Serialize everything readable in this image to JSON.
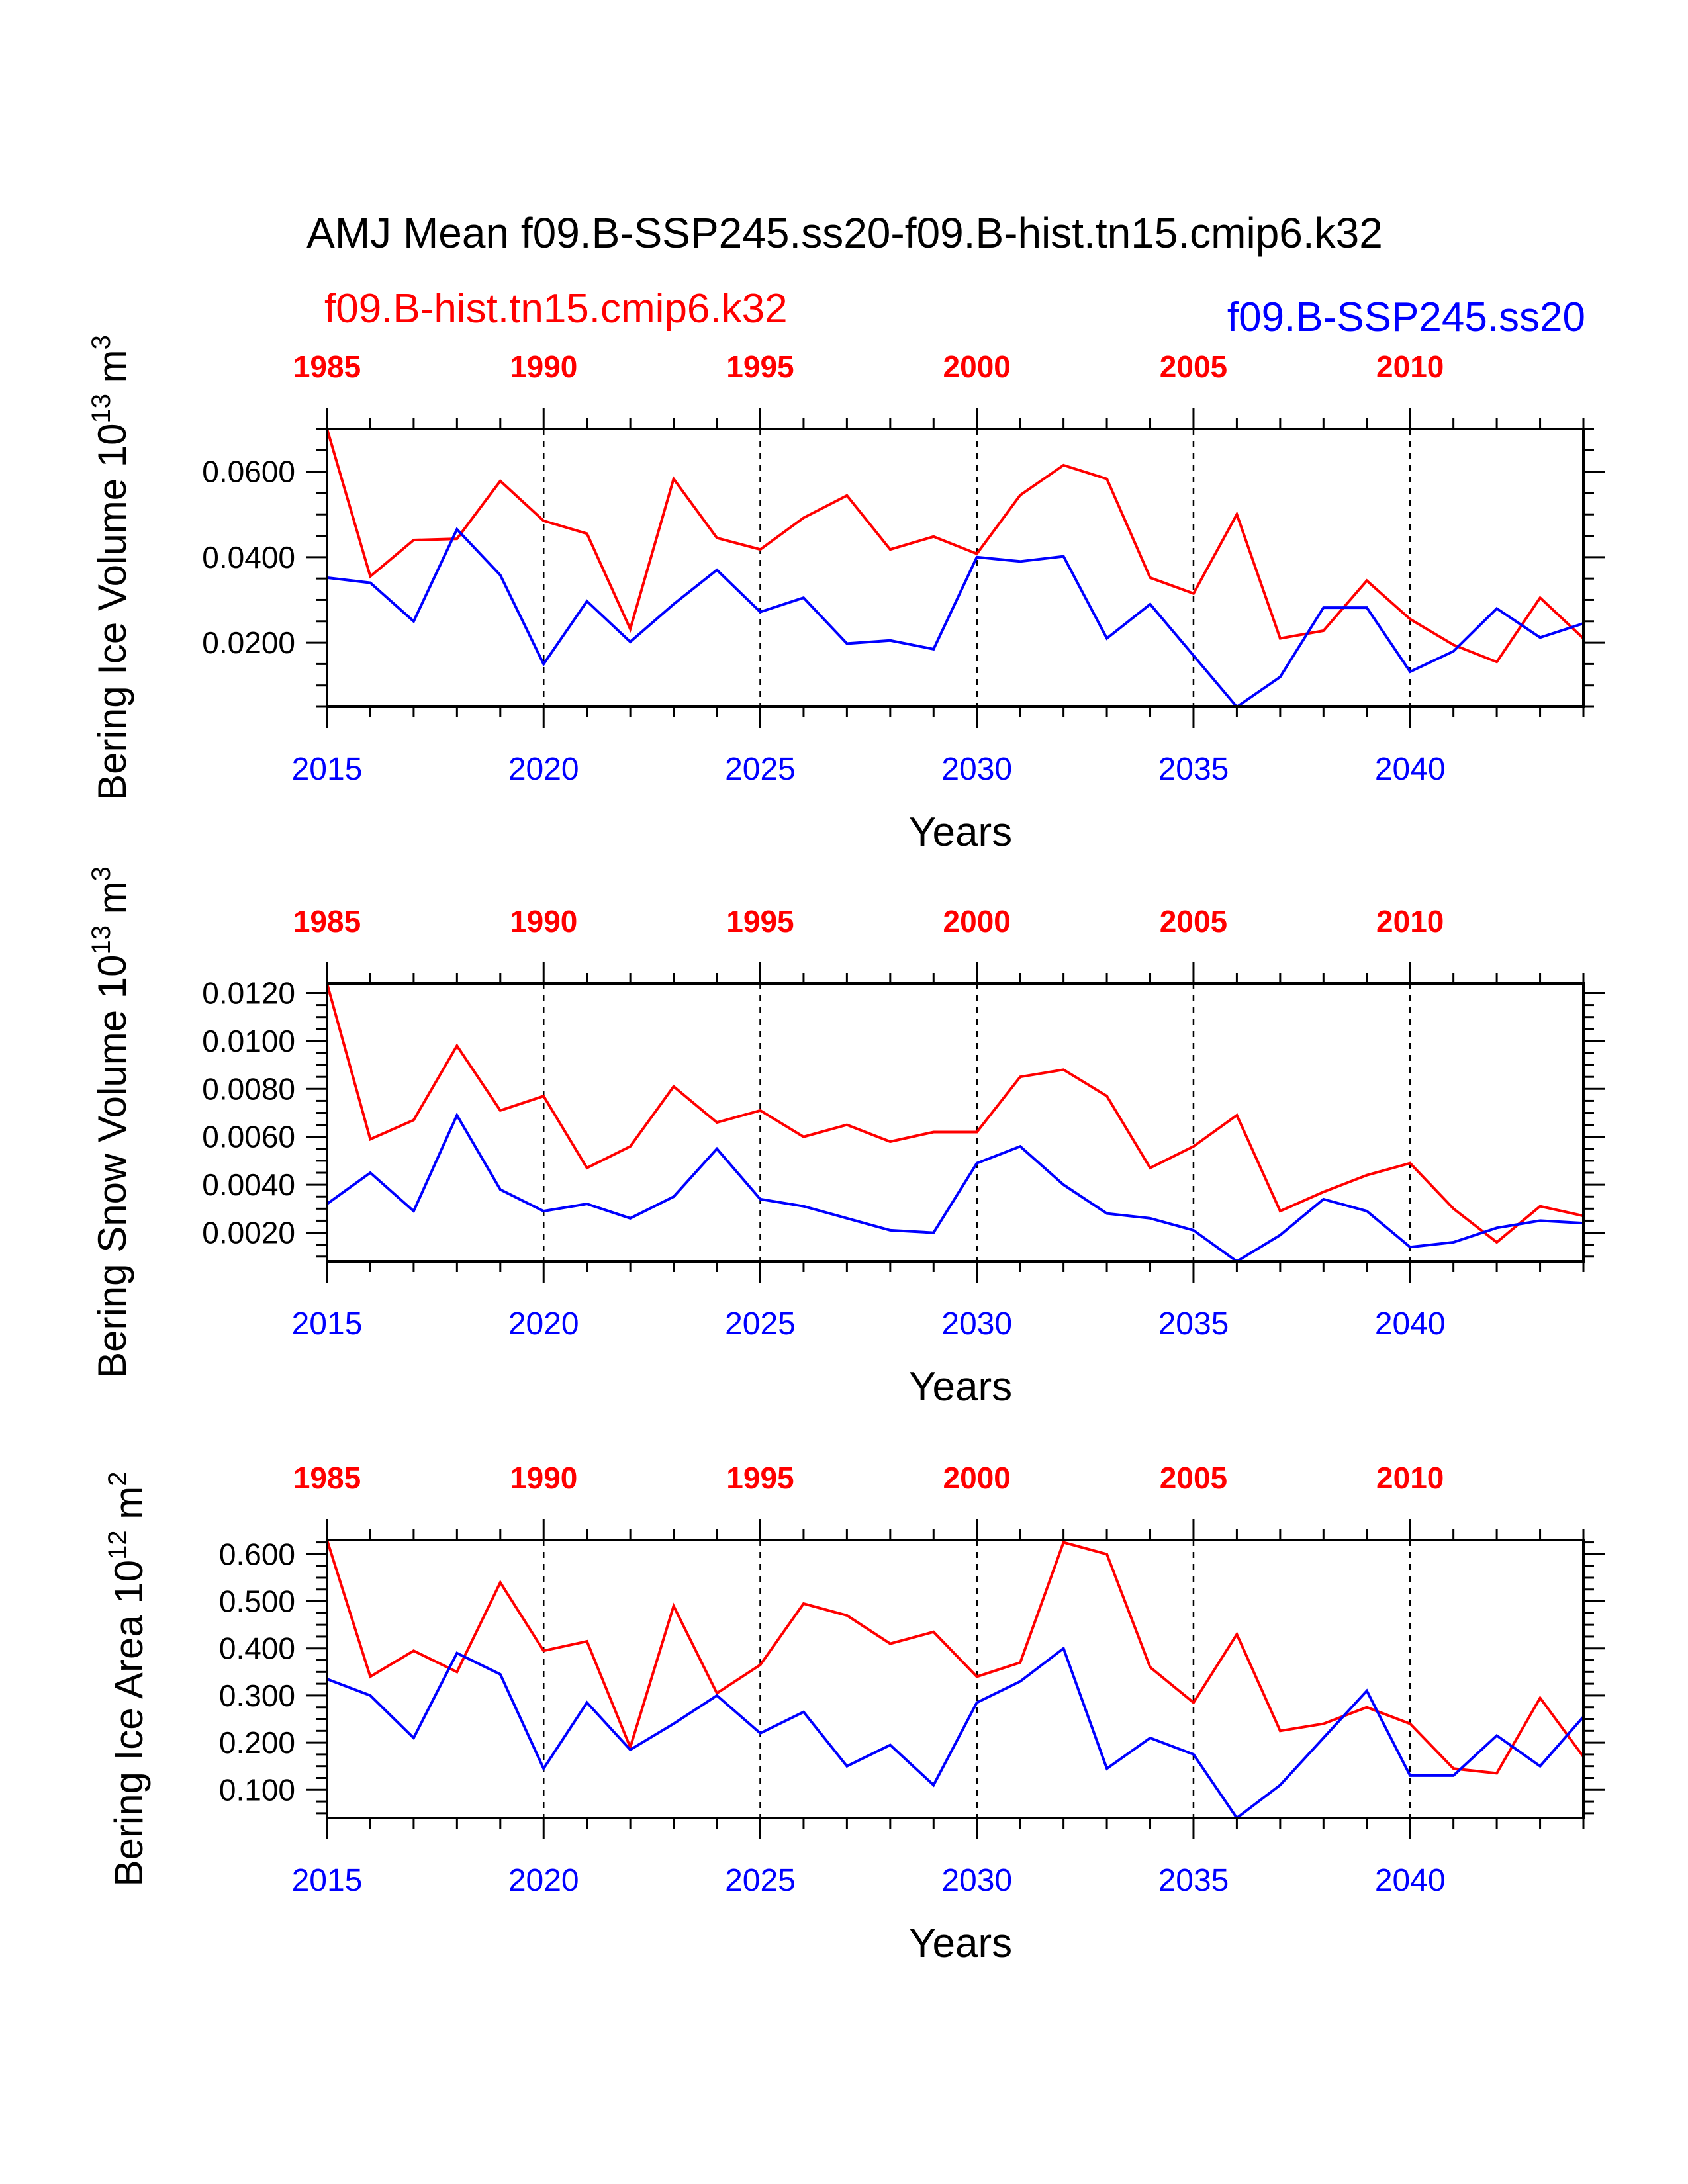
{
  "title": "AMJ Mean f09.B-SSP245.ss20-f09.B-hist.tn15.cmip6.k32",
  "legend": {
    "hist_label": "f09.B-hist.tn15.cmip6.k32",
    "ssp_label": "f09.B-SSP245.ss20"
  },
  "colors": {
    "hist": "#ff0000",
    "ssp": "#0000ff",
    "axis": "#000000",
    "grid": "#000000"
  },
  "chart_data": [
    {
      "type": "line",
      "ylabel_main": "Bering Ice Volume 10",
      "ylabel_sup": "13",
      "ylabel_unit": " m",
      "ylabel_unit_sup": "3",
      "xlabel": "Years",
      "ylim": [
        0.005,
        0.07
      ],
      "yticks": [
        0.02,
        0.04,
        0.06
      ],
      "ytick_labels": [
        "0.0200",
        "0.0400",
        "0.0600"
      ],
      "yminor_step": 0.005,
      "bottom_axis_years": [
        2015,
        2020,
        2025,
        2030,
        2035,
        2040
      ],
      "top_axis_years": [
        1985,
        1990,
        1995,
        2000,
        2005,
        2010
      ],
      "xlim": [
        2015,
        2044
      ],
      "dashed_grid_years": [
        2020,
        2025,
        2030,
        2035,
        2040
      ],
      "series": [
        {
          "key": "hist",
          "values": [
            0.07,
            0.0355,
            0.044,
            0.0443,
            0.0578,
            0.0485,
            0.0455,
            0.0232,
            0.0583,
            0.0445,
            0.0418,
            0.0492,
            0.0544,
            0.0418,
            0.0448,
            0.0408,
            0.0545,
            0.0615,
            0.0583,
            0.0352,
            0.0315,
            0.05,
            0.021,
            0.0228,
            0.0345,
            0.0255,
            0.0195,
            0.0155,
            0.0305,
            0.021
          ]
        },
        {
          "key": "ssp",
          "values": [
            0.0352,
            0.034,
            0.025,
            0.0465,
            0.0358,
            0.015,
            0.0297,
            0.0202,
            0.029,
            0.037,
            0.0272,
            0.0305,
            0.0198,
            0.0205,
            0.0185,
            0.04,
            0.039,
            0.0402,
            0.021,
            0.029,
            0.017,
            0.005,
            0.012,
            0.0282,
            0.0282,
            0.0132,
            0.018,
            0.028,
            0.0212,
            0.0245
          ]
        }
      ]
    },
    {
      "type": "line",
      "ylabel_main": "Bering Snow Volume 10",
      "ylabel_sup": "13",
      "ylabel_unit": " m",
      "ylabel_unit_sup": "3",
      "xlabel": "Years",
      "ylim": [
        0.0008,
        0.0124
      ],
      "yticks": [
        0.002,
        0.004,
        0.006,
        0.008,
        0.01,
        0.012
      ],
      "ytick_labels": [
        "0.0020",
        "0.0040",
        "0.0060",
        "0.0080",
        "0.0100",
        "0.0120"
      ],
      "yminor_step": 0.0005,
      "bottom_axis_years": [
        2015,
        2020,
        2025,
        2030,
        2035,
        2040
      ],
      "top_axis_years": [
        1985,
        1990,
        1995,
        2000,
        2005,
        2010
      ],
      "xlim": [
        2015,
        2044
      ],
      "dashed_grid_years": [
        2020,
        2025,
        2030,
        2035,
        2040
      ],
      "series": [
        {
          "key": "hist",
          "values": [
            0.0124,
            0.0059,
            0.0067,
            0.0098,
            0.0071,
            0.0077,
            0.0047,
            0.0056,
            0.0081,
            0.0066,
            0.0071,
            0.006,
            0.0065,
            0.0058,
            0.0062,
            0.0062,
            0.0085,
            0.0088,
            0.0077,
            0.0047,
            0.0056,
            0.0069,
            0.0029,
            0.0037,
            0.0044,
            0.0049,
            0.003,
            0.0016,
            0.0031,
            0.0027
          ]
        },
        {
          "key": "ssp",
          "values": [
            0.0032,
            0.0045,
            0.0029,
            0.0069,
            0.0038,
            0.0029,
            0.0032,
            0.0026,
            0.0035,
            0.0055,
            0.0034,
            0.0031,
            0.0026,
            0.0021,
            0.002,
            0.0049,
            0.0056,
            0.004,
            0.0028,
            0.0026,
            0.0021,
            0.0008,
            0.0019,
            0.0034,
            0.0029,
            0.0014,
            0.0016,
            0.0022,
            0.0025,
            0.0024
          ]
        }
      ]
    },
    {
      "type": "line",
      "ylabel_main": "Bering Ice Area 10",
      "ylabel_sup": "12",
      "ylabel_unit": " m",
      "ylabel_unit_sup": "2",
      "xlabel": "Years",
      "ylim": [
        0.04,
        0.63
      ],
      "yticks": [
        0.1,
        0.2,
        0.3,
        0.4,
        0.5,
        0.6
      ],
      "ytick_labels": [
        "0.100",
        "0.200",
        "0.300",
        "0.400",
        "0.500",
        "0.600"
      ],
      "yminor_step": 0.025,
      "bottom_axis_years": [
        2015,
        2020,
        2025,
        2030,
        2035,
        2040
      ],
      "top_axis_years": [
        1985,
        1990,
        1995,
        2000,
        2005,
        2010
      ],
      "xlim": [
        2015,
        2044
      ],
      "dashed_grid_years": [
        2020,
        2025,
        2030,
        2035,
        2040
      ],
      "series": [
        {
          "key": "hist",
          "values": [
            0.63,
            0.34,
            0.395,
            0.35,
            0.54,
            0.395,
            0.415,
            0.19,
            0.49,
            0.305,
            0.365,
            0.495,
            0.47,
            0.41,
            0.435,
            0.34,
            0.37,
            0.625,
            0.6,
            0.36,
            0.285,
            0.43,
            0.225,
            0.24,
            0.275,
            0.24,
            0.145,
            0.135,
            0.295,
            0.17
          ]
        },
        {
          "key": "ssp",
          "values": [
            0.335,
            0.3,
            0.21,
            0.39,
            0.345,
            0.145,
            0.285,
            0.185,
            0.24,
            0.3,
            0.22,
            0.265,
            0.15,
            0.195,
            0.11,
            0.285,
            0.33,
            0.4,
            0.145,
            0.21,
            0.175,
            0.04,
            0.11,
            0.21,
            0.31,
            0.13,
            0.13,
            0.215,
            0.15,
            0.255
          ]
        }
      ]
    }
  ]
}
